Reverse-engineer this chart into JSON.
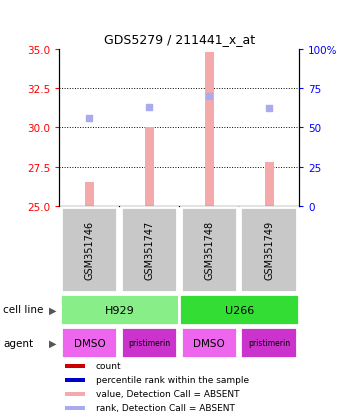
{
  "title": "GDS5279 / 211441_x_at",
  "samples": [
    "GSM351746",
    "GSM351747",
    "GSM351748",
    "GSM351749"
  ],
  "bar_values": [
    26.5,
    30.0,
    34.8,
    27.8
  ],
  "bar_bottom": [
    25.0,
    25.0,
    25.0,
    25.0
  ],
  "rank_values": [
    30.6,
    31.3,
    32.0,
    31.2
  ],
  "ylim_left": [
    25.0,
    35.0
  ],
  "ylim_right": [
    0,
    100
  ],
  "yticks_left": [
    25,
    27.5,
    30,
    32.5,
    35
  ],
  "ytick_labels_right": [
    "0",
    "25",
    "50",
    "75",
    "100%"
  ],
  "bar_color": "#F4AAAA",
  "rank_color": "#AAAAEE",
  "sample_box_color": "#C8C8C8",
  "h929_color": "#88EE88",
  "u266_color": "#33DD33",
  "dmso_color": "#EE66EE",
  "prist_color": "#CC33CC",
  "legend_items": [
    {
      "color": "#CC0000",
      "label": "count"
    },
    {
      "color": "#0000CC",
      "label": "percentile rank within the sample"
    },
    {
      "color": "#F4AAAA",
      "label": "value, Detection Call = ABSENT"
    },
    {
      "color": "#AAAAEE",
      "label": "rank, Detection Call = ABSENT"
    }
  ],
  "grid_yticks": [
    27.5,
    30.0,
    32.5
  ],
  "x_positions": [
    0,
    1,
    2,
    3
  ]
}
